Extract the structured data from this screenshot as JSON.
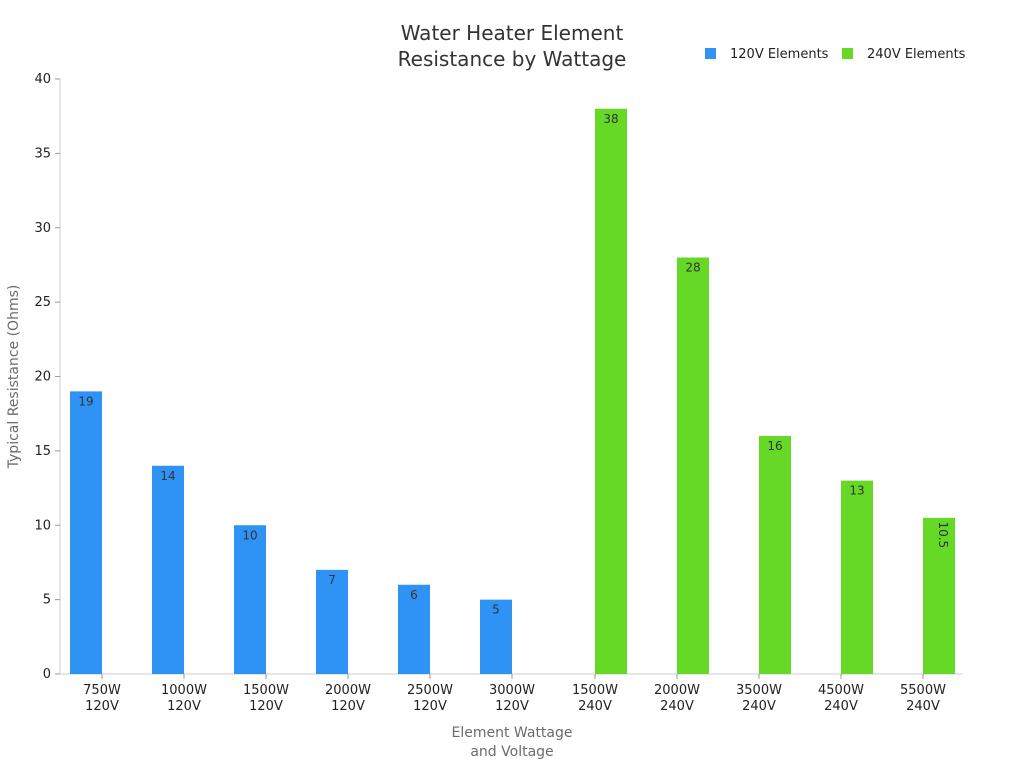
{
  "chart_data": {
    "type": "bar",
    "title_lines": [
      "Water Heater Element",
      "Resistance by Wattage"
    ],
    "xlabel_lines": [
      "Element Wattage",
      "and Voltage"
    ],
    "ylabel": "Typical Resistance (Ohms)",
    "ylim": [
      0,
      40
    ],
    "yticks": [
      0,
      5,
      10,
      15,
      20,
      25,
      30,
      35,
      40
    ],
    "grid": false,
    "legend_position": "top-right",
    "categories": [
      [
        "750W",
        "120V"
      ],
      [
        "1000W",
        "120V"
      ],
      [
        "1500W",
        "120V"
      ],
      [
        "2000W",
        "120V"
      ],
      [
        "2500W",
        "120V"
      ],
      [
        "3000W",
        "120V"
      ],
      [
        "1500W",
        "240V"
      ],
      [
        "2000W",
        "240V"
      ],
      [
        "3500W",
        "240V"
      ],
      [
        "4500W",
        "240V"
      ],
      [
        "5500W",
        "240V"
      ]
    ],
    "series": [
      {
        "name": "120V Elements",
        "color": "#2e93f5",
        "values": [
          19,
          14,
          10,
          7,
          6,
          5,
          null,
          null,
          null,
          null,
          null
        ]
      },
      {
        "name": "240V Elements",
        "color": "#66d926",
        "values": [
          null,
          null,
          null,
          null,
          null,
          null,
          38,
          28,
          16,
          13,
          10.5
        ]
      }
    ]
  }
}
